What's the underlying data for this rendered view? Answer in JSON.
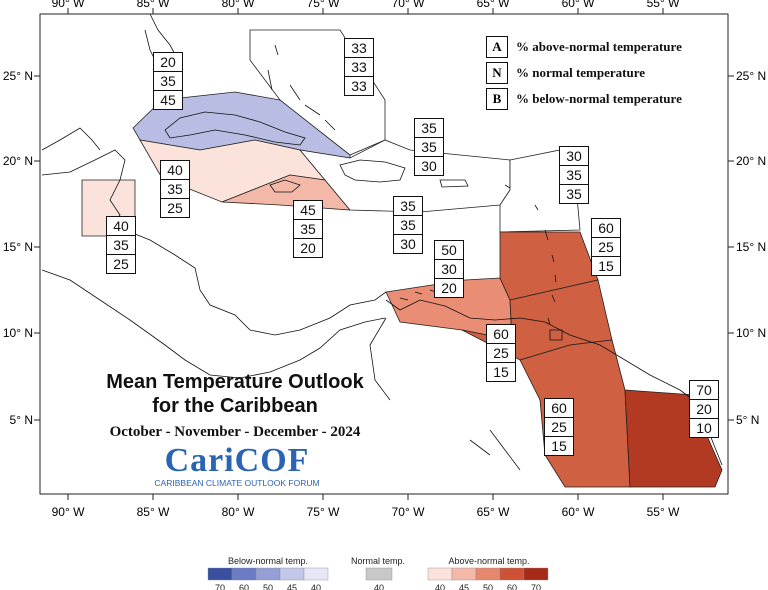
{
  "map": {
    "title_line1": "Mean Temperature Outlook",
    "title_line2": "for the Caribbean",
    "period": "October - November - December - 2024",
    "logo_text": "CariCOF",
    "logo_subtitle": "CARIBBEAN CLIMATE OUTLOOK FORUM",
    "lon_ticks": [
      "90° W",
      "85° W",
      "80° W",
      "75° W",
      "70° W",
      "65° W",
      "60° W",
      "55° W"
    ],
    "lat_ticks": [
      "25° N",
      "20° N",
      "15° N",
      "10° N",
      "5° N"
    ],
    "key": [
      {
        "letter": "A",
        "text": "% above-normal temperature"
      },
      {
        "letter": "N",
        "text": "% normal temperature"
      },
      {
        "letter": "B",
        "text": "% below-normal temperature"
      }
    ],
    "probability_boxes": [
      {
        "region": "cuba",
        "values": [
          "20",
          "35",
          "45"
        ]
      },
      {
        "region": "bahamas",
        "values": [
          "33",
          "33",
          "33"
        ]
      },
      {
        "region": "hispaniola-north",
        "values": [
          "35",
          "35",
          "30"
        ]
      },
      {
        "region": "leeward-north",
        "values": [
          "30",
          "35",
          "35"
        ]
      },
      {
        "region": "cayman",
        "values": [
          "40",
          "35",
          "25"
        ]
      },
      {
        "region": "jamaica",
        "values": [
          "45",
          "35",
          "20"
        ]
      },
      {
        "region": "belize",
        "values": [
          "40",
          "35",
          "25"
        ]
      },
      {
        "region": "caribbean-sea-east",
        "values": [
          "35",
          "35",
          "30"
        ]
      },
      {
        "region": "abc-islands",
        "values": [
          "50",
          "30",
          "20"
        ]
      },
      {
        "region": "lesser-antilles",
        "values": [
          "60",
          "25",
          "15"
        ]
      },
      {
        "region": "trinidad",
        "values": [
          "60",
          "25",
          "15"
        ]
      },
      {
        "region": "guyana",
        "values": [
          "60",
          "25",
          "15"
        ]
      },
      {
        "region": "suriname-guiana",
        "values": [
          "70",
          "20",
          "10"
        ]
      }
    ]
  },
  "legend": {
    "below": {
      "label": "Below-normal temp.",
      "ticks": [
        "70",
        "60",
        "50",
        "45",
        "40"
      ],
      "colors": [
        "#3a4fa0",
        "#6b7cc4",
        "#959fd6",
        "#c3c8ea",
        "#e6e8f7"
      ]
    },
    "normal": {
      "label": "Normal temp.",
      "ticks": [
        "40"
      ],
      "colors": [
        "#c8c8c8"
      ]
    },
    "above": {
      "label": "Above-normal temp.",
      "ticks": [
        "40",
        "45",
        "50",
        "60",
        "70"
      ],
      "colors": [
        "#fbe3dc",
        "#f4b8a8",
        "#e7876e",
        "#cf5236",
        "#a52a17"
      ]
    }
  },
  "colors": {
    "below45": "#b9bde3",
    "above40": "#fbe3dc",
    "above45": "#f4b8a8",
    "above50": "#e98d74",
    "above60": "#d06042",
    "above70": "#b23a22"
  }
}
